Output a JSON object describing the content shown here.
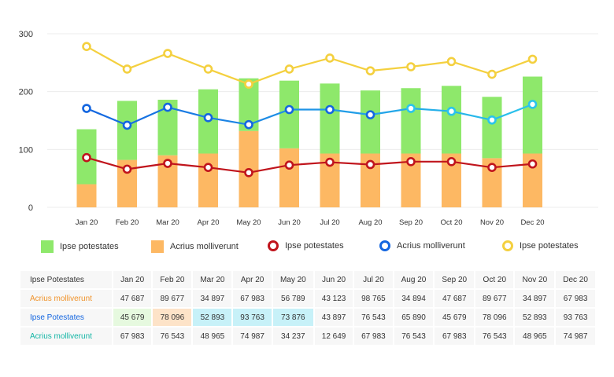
{
  "chart_data": {
    "type": "bar",
    "categories": [
      "Jan 20",
      "Feb 20",
      "Mar 20",
      "Apr 20",
      "May 20",
      "Jun 20",
      "Jul 20",
      "Aug 20",
      "Sep 20",
      "Oct 20",
      "Nov 20",
      "Dec 20"
    ],
    "ylim": [
      0,
      300
    ],
    "yticks": [
      0,
      100,
      200,
      300
    ],
    "grid": true,
    "stacked_bars": [
      {
        "name": "Acrius molliverunt",
        "color": "#fdb863",
        "values": [
          40,
          82,
          90,
          93,
          132,
          102,
          93,
          93,
          93,
          93,
          85,
          93
        ]
      },
      {
        "name": "Ipse potestates",
        "color": "#8ee86b",
        "values": [
          95,
          102,
          96,
          111,
          91,
          117,
          121,
          109,
          113,
          117,
          106,
          133
        ]
      }
    ],
    "lines": [
      {
        "name": "Ipse potestates",
        "color": "#c0141c",
        "values": [
          86,
          66,
          76,
          69,
          60,
          73,
          78,
          74,
          79,
          79,
          69,
          75
        ]
      },
      {
        "name": "Acrius molliverunt",
        "color": "#1466e0",
        "color_end": "#2ac4ec",
        "values": [
          171,
          142,
          173,
          155,
          143,
          169,
          169,
          160,
          171,
          166,
          151,
          178
        ]
      },
      {
        "name": "Ipse potestates",
        "color": "#f4d03f",
        "values": [
          278,
          239,
          266,
          239,
          213,
          239,
          258,
          236,
          243,
          252,
          230,
          256
        ]
      }
    ],
    "legend": [
      {
        "label": "Ipse potestates",
        "kind": "swatch",
        "color": "#8ee86b"
      },
      {
        "label": "Acrius molliverunt",
        "kind": "swatch",
        "color": "#fdb863"
      },
      {
        "label": "Ipse potestates",
        "kind": "ring",
        "color": "#c0141c"
      },
      {
        "label": "Acrius molliverunt",
        "kind": "ring",
        "color": "#1466e0"
      },
      {
        "label": "Ipse potestates",
        "kind": "ring",
        "color": "#f4d03f"
      }
    ],
    "legend_placement": "bottom"
  },
  "table": {
    "header": "Ipse Potestates",
    "columns": [
      "Jan 20",
      "Feb 20",
      "Mar 20",
      "Apr 20",
      "May 20",
      "Jun 20",
      "Jul 20",
      "Aug 20",
      "Sep 20",
      "Oct 20",
      "Nov 20",
      "Dec 20"
    ],
    "rows": [
      {
        "label": "Acrius molliverunt",
        "color": "#f0932b",
        "cells": [
          "47 687",
          "89 677",
          "34 897",
          "67 983",
          "56 789",
          "43 123",
          "98 765",
          "34 894",
          "47 687",
          "89 677",
          "34 897",
          "67 983"
        ]
      },
      {
        "label": "Ipse Potestates",
        "color": "#1466e0",
        "cells": [
          "45 679",
          "78 096",
          "52 893",
          "93 763",
          "73 876",
          "43 897",
          "76 543",
          "65 890",
          "45 679",
          "78 096",
          "52 893",
          "93 763"
        ],
        "highlights": [
          "green",
          "orange",
          "blue",
          "blue",
          "blue",
          "",
          "",
          "",
          "",
          "",
          "",
          ""
        ]
      },
      {
        "label": "Acrius molliverunt",
        "color": "#12b5a4",
        "cells": [
          "67 983",
          "76 543",
          "48 965",
          "74 987",
          "34 237",
          "12 649",
          "67 983",
          "76 543",
          "67 983",
          "76 543",
          "48 965",
          "74 987"
        ]
      }
    ]
  }
}
